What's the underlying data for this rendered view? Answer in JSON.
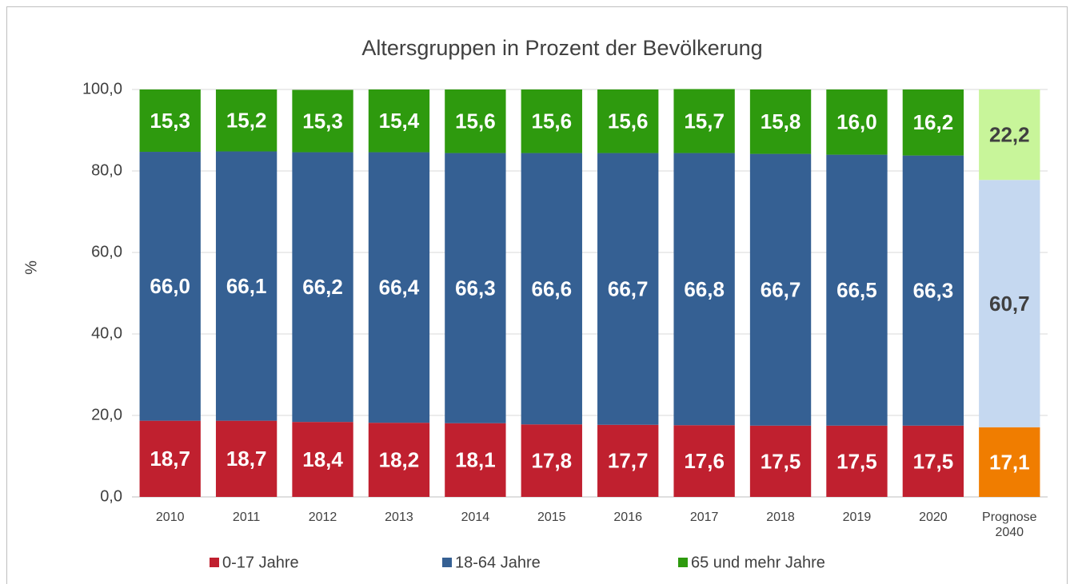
{
  "chart_data": {
    "type": "stacked_bar",
    "title": "Altersgruppen in Prozent der Bevölkerung",
    "ylabel": "%",
    "categories": [
      "2010",
      "2011",
      "2012",
      "2013",
      "2014",
      "2015",
      "2016",
      "2017",
      "2018",
      "2019",
      "2020",
      "Prognose 2040"
    ],
    "series": [
      {
        "name": "0-17 Jahre",
        "color": "#c0202f",
        "colors": [
          "#c0202f",
          "#c0202f",
          "#c0202f",
          "#c0202f",
          "#c0202f",
          "#c0202f",
          "#c0202f",
          "#c0202f",
          "#c0202f",
          "#c0202f",
          "#c0202f",
          "#f07d00"
        ],
        "label_colors": [
          "#ffffff",
          "#ffffff",
          "#ffffff",
          "#ffffff",
          "#ffffff",
          "#ffffff",
          "#ffffff",
          "#ffffff",
          "#ffffff",
          "#ffffff",
          "#ffffff",
          "#ffffff"
        ],
        "values": [
          18.7,
          18.7,
          18.4,
          18.2,
          18.1,
          17.8,
          17.7,
          17.6,
          17.5,
          17.5,
          17.5,
          17.1
        ],
        "value_labels": [
          "18,7",
          "18,7",
          "18,4",
          "18,2",
          "18,1",
          "17,8",
          "17,7",
          "17,6",
          "17,5",
          "17,5",
          "17,5",
          "17,1"
        ]
      },
      {
        "name": "18-64 Jahre",
        "color": "#356093",
        "colors": [
          "#356093",
          "#356093",
          "#356093",
          "#356093",
          "#356093",
          "#356093",
          "#356093",
          "#356093",
          "#356093",
          "#356093",
          "#356093",
          "#c5d8f0"
        ],
        "label_colors": [
          "#ffffff",
          "#ffffff",
          "#ffffff",
          "#ffffff",
          "#ffffff",
          "#ffffff",
          "#ffffff",
          "#ffffff",
          "#ffffff",
          "#ffffff",
          "#ffffff",
          "#404040"
        ],
        "values": [
          66.0,
          66.1,
          66.2,
          66.4,
          66.3,
          66.6,
          66.7,
          66.8,
          66.7,
          66.5,
          66.3,
          60.7
        ],
        "value_labels": [
          "66,0",
          "66,1",
          "66,2",
          "66,4",
          "66,3",
          "66,6",
          "66,7",
          "66,8",
          "66,7",
          "66,5",
          "66,3",
          "60,7"
        ]
      },
      {
        "name": "65 und mehr Jahre",
        "color": "#2e9a0e",
        "colors": [
          "#2e9a0e",
          "#2e9a0e",
          "#2e9a0e",
          "#2e9a0e",
          "#2e9a0e",
          "#2e9a0e",
          "#2e9a0e",
          "#2e9a0e",
          "#2e9a0e",
          "#2e9a0e",
          "#2e9a0e",
          "#c8f59a"
        ],
        "label_colors": [
          "#ffffff",
          "#ffffff",
          "#ffffff",
          "#ffffff",
          "#ffffff",
          "#ffffff",
          "#ffffff",
          "#ffffff",
          "#ffffff",
          "#ffffff",
          "#ffffff",
          "#404040"
        ],
        "values": [
          15.3,
          15.2,
          15.3,
          15.4,
          15.6,
          15.6,
          15.6,
          15.7,
          15.8,
          16.0,
          16.2,
          22.2
        ],
        "value_labels": [
          "15,3",
          "15,2",
          "15,3",
          "15,4",
          "15,6",
          "15,6",
          "15,6",
          "15,7",
          "15,8",
          "16,0",
          "16,2",
          "22,2"
        ]
      }
    ],
    "ylim": [
      0,
      100
    ],
    "yticks": [
      {
        "value": 0,
        "label": "0,0"
      },
      {
        "value": 20,
        "label": "20,0"
      },
      {
        "value": 40,
        "label": "40,0"
      },
      {
        "value": 60,
        "label": "60,0"
      },
      {
        "value": 80,
        "label": "80,0"
      },
      {
        "value": 100,
        "label": "100,0"
      }
    ],
    "grid": true,
    "legend": "bottom"
  }
}
